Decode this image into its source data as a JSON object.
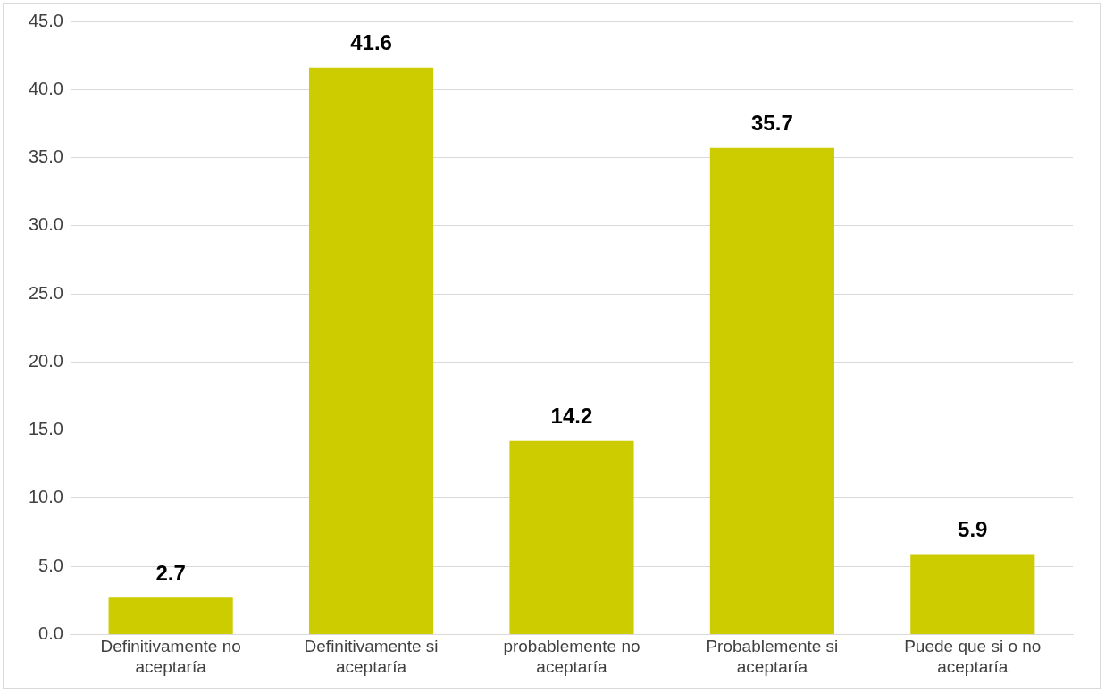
{
  "chart_data": {
    "type": "bar",
    "categories": [
      "Definitivamente no aceptaría",
      "Definitivamente si aceptaría",
      "probablemente no aceptaría",
      "Probablemente si aceptaría",
      "Puede que si o no aceptaría"
    ],
    "values": [
      2.7,
      41.6,
      14.2,
      35.7,
      5.9
    ],
    "color": "#cccc00",
    "ylim": [
      0,
      45
    ],
    "yticks": [
      {
        "value": 0,
        "label": "0.0"
      },
      {
        "value": 5,
        "label": "5.0"
      },
      {
        "value": 10,
        "label": "10.0"
      },
      {
        "value": 15,
        "label": "15.0"
      },
      {
        "value": 20,
        "label": "20.0"
      },
      {
        "value": 25,
        "label": "25.0"
      },
      {
        "value": 30,
        "label": "30.0"
      },
      {
        "value": 35,
        "label": "35.0"
      },
      {
        "value": 40,
        "label": "40.0"
      },
      {
        "value": 45,
        "label": "45.0"
      }
    ],
    "grid": "y",
    "legend": false,
    "data_labels": true
  }
}
